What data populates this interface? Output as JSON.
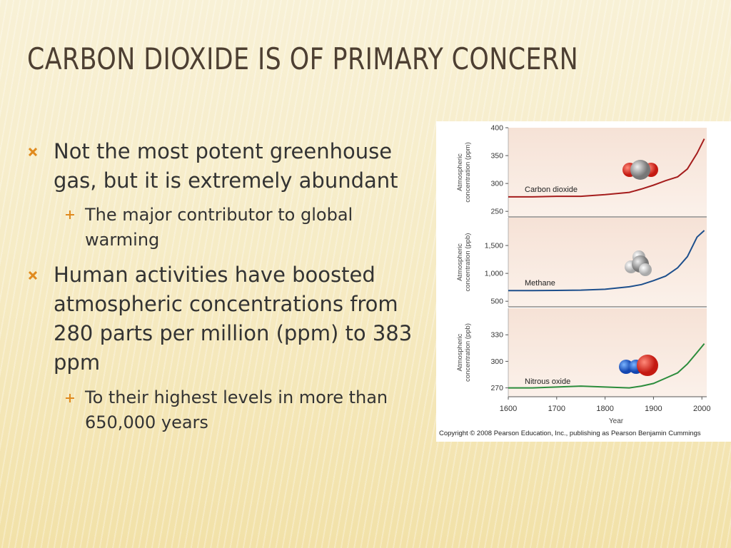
{
  "slide": {
    "title": "CARBON DIOXIDE IS OF PRIMARY CONCERN",
    "bullets": [
      {
        "text": "Not the most potent greenhouse gas, but it is extremely abundant",
        "sub": [
          "The major contributor to global warming"
        ]
      },
      {
        "text": "Human activities have boosted atmospheric concentrations from 280 parts per million (ppm) to 383 ppm",
        "sub": [
          "To their highest levels in more than 650,000 years"
        ]
      }
    ]
  },
  "figure": {
    "copyright": "Copyright © 2008 Pearson Education, Inc., publishing as Pearson Benjamin Cummings"
  },
  "chart_data": [
    {
      "type": "line",
      "ylabel": [
        "Atmospheric",
        "concentration (ppm)"
      ],
      "annotation": "Carbon dioxide",
      "x": [
        1600,
        1650,
        1700,
        1750,
        1800,
        1850,
        1875,
        1900,
        1925,
        1950,
        1970,
        1990,
        2005
      ],
      "values": [
        276,
        276,
        277,
        277,
        280,
        284,
        290,
        297,
        305,
        312,
        326,
        354,
        380
      ],
      "color": "#a51d1d",
      "xlim": [
        1600,
        2010
      ],
      "ylim": [
        240,
        400
      ],
      "yticks": [
        250,
        300,
        350,
        400
      ]
    },
    {
      "type": "line",
      "ylabel": [
        "Atmospheric",
        "concentration (ppb)"
      ],
      "annotation": "Methane",
      "x": [
        1600,
        1650,
        1700,
        1750,
        1800,
        1850,
        1875,
        1900,
        1925,
        1950,
        1970,
        1990,
        2005
      ],
      "values": [
        690,
        690,
        695,
        700,
        715,
        760,
        800,
        870,
        950,
        1100,
        1300,
        1650,
        1770
      ],
      "color": "#1d4f8c",
      "xlim": [
        1600,
        2010
      ],
      "ylim": [
        400,
        2000
      ],
      "yticks": [
        500,
        {
          "value": 1000,
          "label": "1,000"
        },
        {
          "value": 1500,
          "label": "1,500"
        }
      ]
    },
    {
      "type": "line",
      "ylabel": [
        "Atmospheric",
        "concentration (ppb)"
      ],
      "annotation": "Nitrous oxide",
      "x": [
        1600,
        1650,
        1700,
        1750,
        1800,
        1850,
        1875,
        1900,
        1925,
        1950,
        1970,
        1990,
        2005
      ],
      "values": [
        270,
        270,
        271,
        272,
        271,
        270,
        272,
        275,
        281,
        287,
        297,
        310,
        320
      ],
      "color": "#2b8c3c",
      "xlim": [
        1600,
        2010
      ],
      "ylim": [
        260,
        360
      ],
      "yticks": [
        270,
        300,
        330
      ],
      "xticks": [
        1600,
        1700,
        1800,
        1900,
        2000
      ],
      "xlabel": "Year"
    }
  ]
}
